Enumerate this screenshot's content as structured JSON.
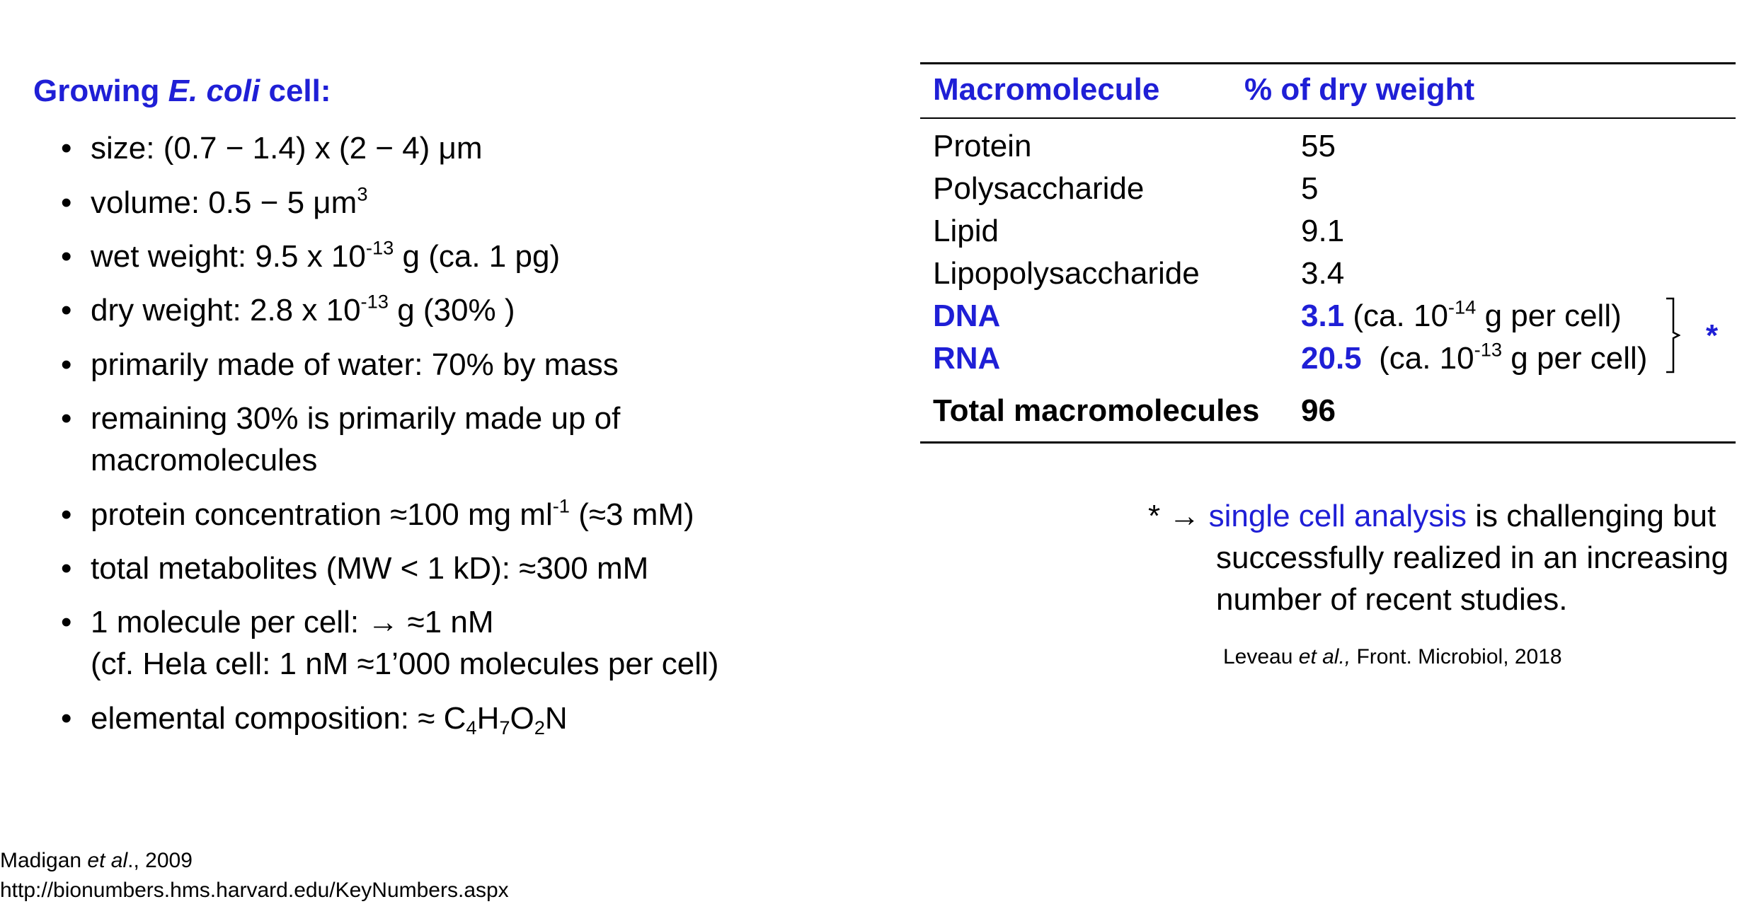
{
  "left": {
    "title_prefix": "Growing ",
    "title_italic": "E. coli",
    "title_suffix": " cell:",
    "bullets": {
      "size": "size: (0.7 − 1.4) x (2 − 4) μm",
      "volume": "volume: 0.5 − 5 μm",
      "volume_sup": "3",
      "wet_a": "wet weight: 9.5 x 10",
      "wet_sup": "-13",
      "wet_b": " g (ca. 1 pg)",
      "dry_a": "dry weight: 2.8 x 10",
      "dry_sup": "-13",
      "dry_b": " g (30% )",
      "water": "primarily made of water: 70% by mass",
      "remaining_1": "remaining 30% is primarily made up of",
      "remaining_2": "macromolecules",
      "protein_a": "protein concentration ≈100 mg ml",
      "protein_sup": "-1",
      "protein_b": " (≈3 mM)",
      "metabolites": "total metabolites (MW < 1 kD): ≈300 mM",
      "molecule_1": "1 molecule per cell: → ≈1 nM",
      "molecule_2": "(cf. Hela cell: 1 nM ≈1’000 molecules  per cell)",
      "elemental_a": "elemental composition: ≈ C",
      "elemental_s1": "4",
      "elemental_h": "H",
      "elemental_s2": "7",
      "elemental_o": "O",
      "elemental_s3": "2",
      "elemental_n": "N"
    }
  },
  "references": {
    "madigan_a": "Madigan ",
    "madigan_i": "et al",
    "madigan_b": "., 2009",
    "url": "http://bionumbers.hms.harvard.edu/KeyNumbers.aspx"
  },
  "table": {
    "header": {
      "col1": "Macromolecule",
      "col2": "% of dry weight"
    },
    "rows": [
      {
        "name": "Protein",
        "value": "55"
      },
      {
        "name": "Polysaccharide",
        "value": "5"
      },
      {
        "name": "Lipid",
        "value": "9.1"
      },
      {
        "name": "Lipopolysaccharide",
        "value": "3.4"
      }
    ],
    "dna": {
      "name": "DNA",
      "value": "3.1",
      "note_a": " (ca. 10",
      "note_sup": "-14",
      "note_b": " g per cell)"
    },
    "rna": {
      "name": "RNA",
      "value": "20.5",
      "note_a": "  (ca. 10",
      "note_sup": "-13",
      "note_b": " g per cell)"
    },
    "total": {
      "name": "Total macromolecules",
      "value": "96"
    },
    "bracket_mark": "*"
  },
  "note": {
    "prefix": "* → ",
    "link": "single cell analysis",
    "line1_rest": " is challenging but",
    "line2": "successfully realized in an increasing",
    "line3": "number of recent studies.",
    "cite_a": "Leveau ",
    "cite_i": "et al.,",
    "cite_b": " Front. Microbiol, 2018"
  },
  "colors": {
    "accent_blue": "#1f1fd6",
    "text": "#000000"
  }
}
